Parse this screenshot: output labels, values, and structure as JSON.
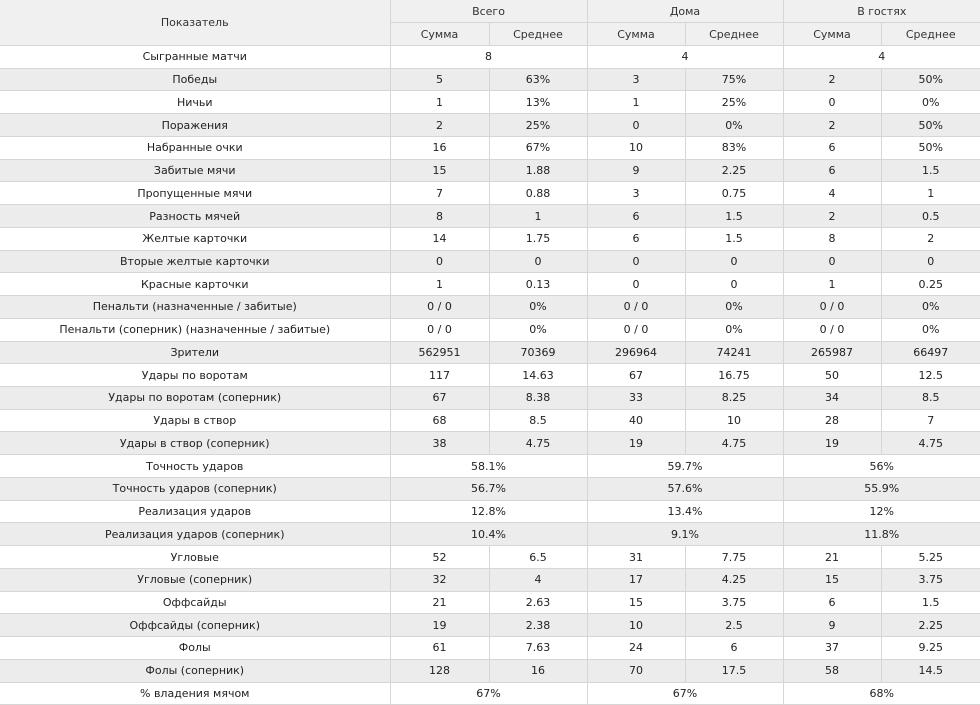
{
  "header": {
    "indicator": "Показатель",
    "groups": [
      "Всего",
      "Дома",
      "В гостях"
    ],
    "sub": [
      "Сумма",
      "Среднее"
    ]
  },
  "rows": [
    {
      "label": "Сыгранные матчи",
      "span": true,
      "cells": [
        "8",
        "4",
        "4"
      ]
    },
    {
      "label": "Победы",
      "cells": [
        "5",
        "63%",
        "3",
        "75%",
        "2",
        "50%"
      ]
    },
    {
      "label": "Ничьи",
      "cells": [
        "1",
        "13%",
        "1",
        "25%",
        "0",
        "0%"
      ]
    },
    {
      "label": "Поражения",
      "cells": [
        "2",
        "25%",
        "0",
        "0%",
        "2",
        "50%"
      ]
    },
    {
      "label": "Набранные очки",
      "cells": [
        "16",
        "67%",
        "10",
        "83%",
        "6",
        "50%"
      ]
    },
    {
      "label": "Забитые мячи",
      "cells": [
        "15",
        "1.88",
        "9",
        "2.25",
        "6",
        "1.5"
      ]
    },
    {
      "label": "Пропущенные мячи",
      "cells": [
        "7",
        "0.88",
        "3",
        "0.75",
        "4",
        "1"
      ]
    },
    {
      "label": "Разность мячей",
      "cells": [
        "8",
        "1",
        "6",
        "1.5",
        "2",
        "0.5"
      ]
    },
    {
      "label": "Желтые карточки",
      "cells": [
        "14",
        "1.75",
        "6",
        "1.5",
        "8",
        "2"
      ]
    },
    {
      "label": "Вторые желтые карточки",
      "cells": [
        "0",
        "0",
        "0",
        "0",
        "0",
        "0"
      ]
    },
    {
      "label": "Красные карточки",
      "cells": [
        "1",
        "0.13",
        "0",
        "0",
        "1",
        "0.25"
      ]
    },
    {
      "label": "Пенальти (назначенные / забитые)",
      "cells": [
        "0 / 0",
        "0%",
        "0 / 0",
        "0%",
        "0 / 0",
        "0%"
      ]
    },
    {
      "label": "Пенальти (соперник) (назначенные / забитые)",
      "cells": [
        "0 / 0",
        "0%",
        "0 / 0",
        "0%",
        "0 / 0",
        "0%"
      ]
    },
    {
      "label": "Зрители",
      "cells": [
        "562951",
        "70369",
        "296964",
        "74241",
        "265987",
        "66497"
      ]
    },
    {
      "label": "Удары по воротам",
      "cells": [
        "117",
        "14.63",
        "67",
        "16.75",
        "50",
        "12.5"
      ]
    },
    {
      "label": "Удары по воротам (соперник)",
      "cells": [
        "67",
        "8.38",
        "33",
        "8.25",
        "34",
        "8.5"
      ]
    },
    {
      "label": "Удары в створ",
      "cells": [
        "68",
        "8.5",
        "40",
        "10",
        "28",
        "7"
      ]
    },
    {
      "label": "Удары в створ (соперник)",
      "cells": [
        "38",
        "4.75",
        "19",
        "4.75",
        "19",
        "4.75"
      ]
    },
    {
      "label": "Точность ударов",
      "span": true,
      "cells": [
        "58.1%",
        "59.7%",
        "56%"
      ]
    },
    {
      "label": "Точность ударов (соперник)",
      "span": true,
      "cells": [
        "56.7%",
        "57.6%",
        "55.9%"
      ]
    },
    {
      "label": "Реализация ударов",
      "span": true,
      "cells": [
        "12.8%",
        "13.4%",
        "12%"
      ]
    },
    {
      "label": "Реализация ударов (соперник)",
      "span": true,
      "cells": [
        "10.4%",
        "9.1%",
        "11.8%"
      ]
    },
    {
      "label": "Угловые",
      "cells": [
        "52",
        "6.5",
        "31",
        "7.75",
        "21",
        "5.25"
      ]
    },
    {
      "label": "Угловые (соперник)",
      "cells": [
        "32",
        "4",
        "17",
        "4.25",
        "15",
        "3.75"
      ]
    },
    {
      "label": "Оффсайды",
      "cells": [
        "21",
        "2.63",
        "15",
        "3.75",
        "6",
        "1.5"
      ]
    },
    {
      "label": "Оффсайды (соперник)",
      "cells": [
        "19",
        "2.38",
        "10",
        "2.5",
        "9",
        "2.25"
      ]
    },
    {
      "label": "Фолы",
      "cells": [
        "61",
        "7.63",
        "24",
        "6",
        "37",
        "9.25"
      ]
    },
    {
      "label": "Фолы (соперник)",
      "cells": [
        "128",
        "16",
        "70",
        "17.5",
        "58",
        "14.5"
      ]
    },
    {
      "label": "% владения мячом",
      "span": true,
      "cells": [
        "67%",
        "67%",
        "68%"
      ]
    }
  ]
}
